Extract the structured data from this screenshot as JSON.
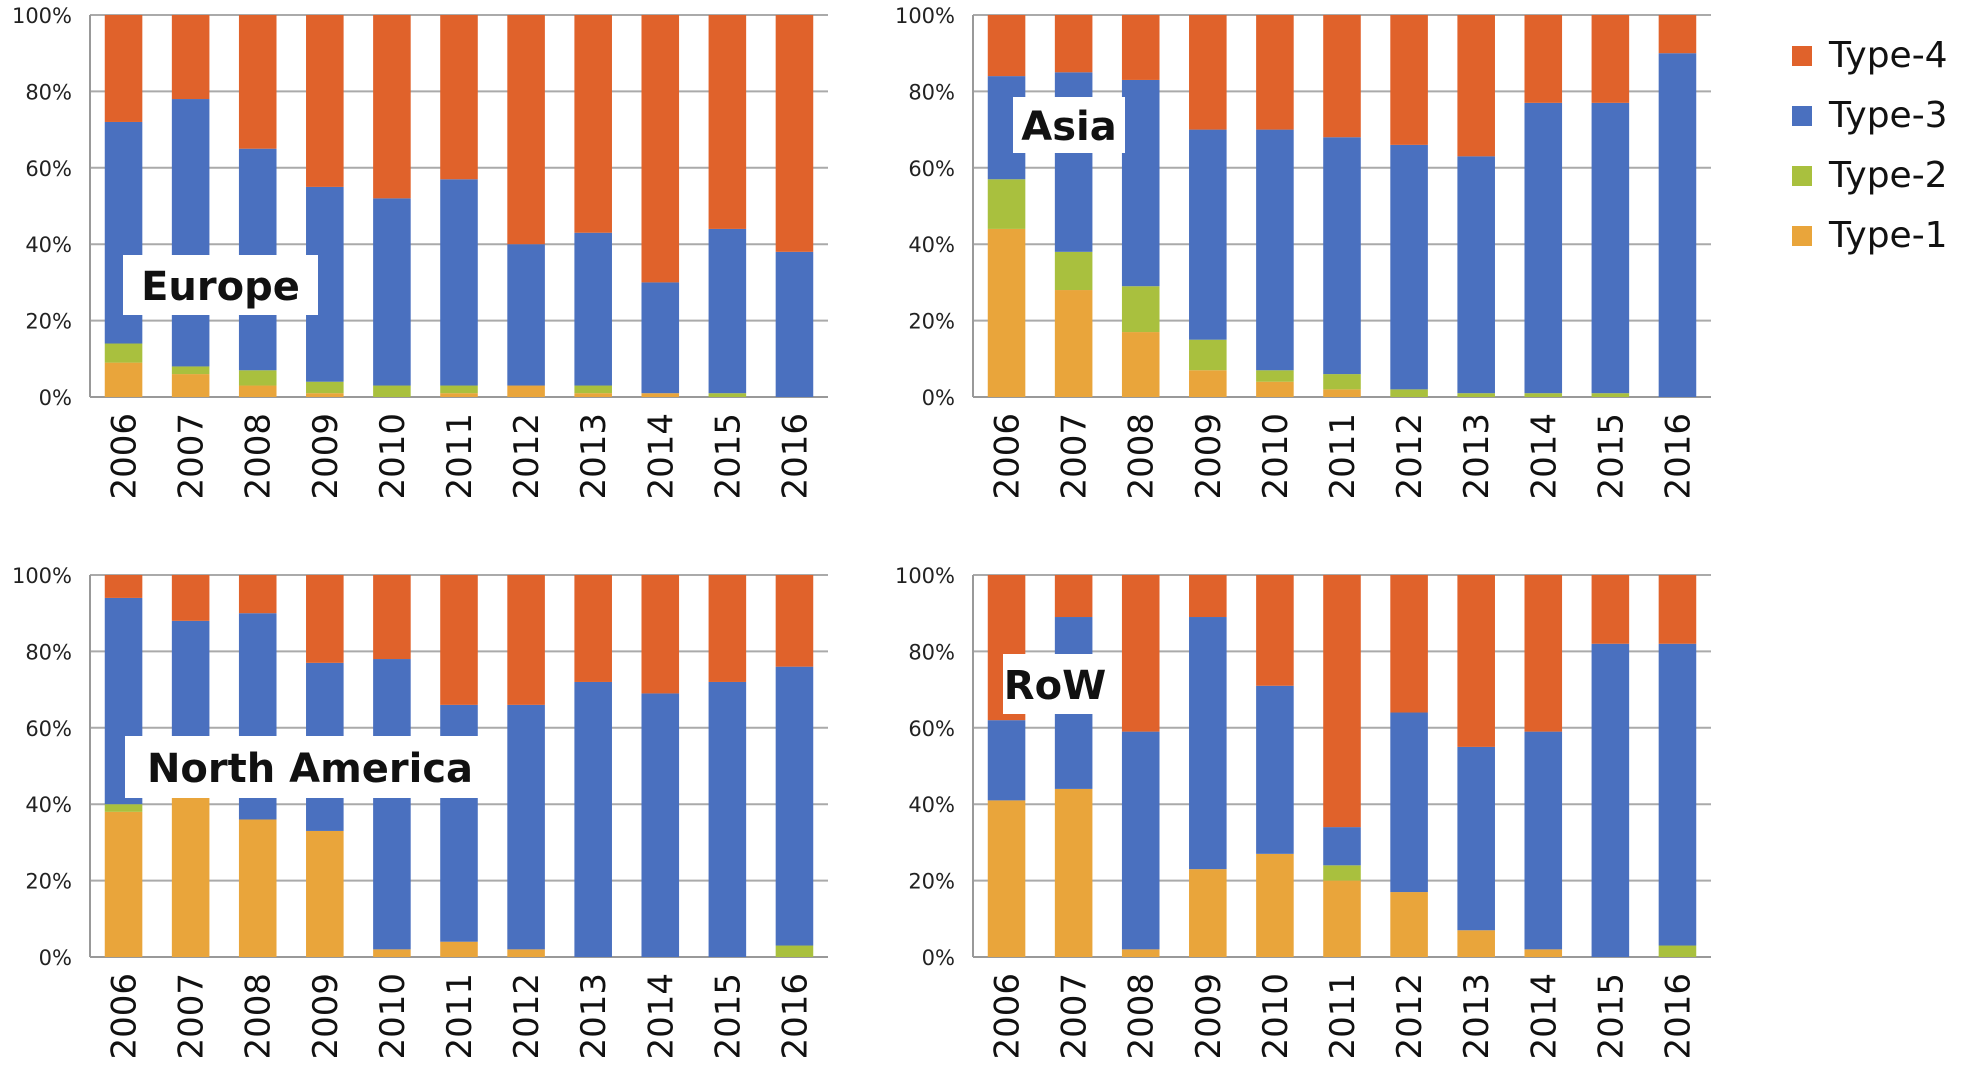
{
  "chart_data": {
    "type": "bar",
    "stacked": true,
    "normalized": true,
    "ylim": [
      0,
      100
    ],
    "y_ticks": [
      "0%",
      "20%",
      "40%",
      "60%",
      "80%",
      "100%"
    ],
    "categories": [
      "2006",
      "2007",
      "2008",
      "2009",
      "2010",
      "2011",
      "2012",
      "2013",
      "2014",
      "2015",
      "2016"
    ],
    "grid": true,
    "legend_position": "top-right",
    "legend": [
      {
        "name": "Type-4",
        "color": "#e0622b"
      },
      {
        "name": "Type-3",
        "color": "#4a70bf"
      },
      {
        "name": "Type-2",
        "color": "#a9c03e"
      },
      {
        "name": "Type-1",
        "color": "#e9a53b"
      }
    ],
    "colors": {
      "Type-1": "#e9a53b",
      "Type-2": "#a9c03e",
      "Type-3": "#4a70bf",
      "Type-4": "#e0622b"
    },
    "panels": [
      {
        "title": "Europe",
        "series": [
          {
            "name": "Type-1",
            "values": [
              9,
              6,
              3,
              1,
              0,
              1,
              3,
              1,
              1,
              0,
              0
            ]
          },
          {
            "name": "Type-2",
            "values": [
              5,
              2,
              4,
              3,
              3,
              2,
              0,
              2,
              0,
              1,
              0
            ]
          },
          {
            "name": "Type-3",
            "values": [
              58,
              70,
              58,
              51,
              49,
              54,
              37,
              40,
              29,
              43,
              38
            ]
          },
          {
            "name": "Type-4",
            "values": [
              28,
              22,
              35,
              45,
              48,
              43,
              60,
              57,
              70,
              56,
              62
            ]
          }
        ]
      },
      {
        "title": "Asia",
        "series": [
          {
            "name": "Type-1",
            "values": [
              44,
              28,
              17,
              7,
              4,
              2,
              0,
              0,
              0,
              0,
              0
            ]
          },
          {
            "name": "Type-2",
            "values": [
              13,
              10,
              12,
              8,
              3,
              4,
              2,
              1,
              1,
              1,
              0
            ]
          },
          {
            "name": "Type-3",
            "values": [
              27,
              47,
              54,
              55,
              63,
              62,
              64,
              62,
              76,
              76,
              90
            ]
          },
          {
            "name": "Type-4",
            "values": [
              16,
              15,
              17,
              30,
              30,
              32,
              34,
              37,
              23,
              23,
              10
            ]
          }
        ]
      },
      {
        "title": "North America",
        "series": [
          {
            "name": "Type-1",
            "values": [
              38,
              42,
              36,
              33,
              2,
              4,
              2,
              0,
              0,
              0,
              0
            ]
          },
          {
            "name": "Type-2",
            "values": [
              2,
              0,
              0,
              0,
              0,
              0,
              0,
              0,
              0,
              0,
              3
            ]
          },
          {
            "name": "Type-3",
            "values": [
              54,
              46,
              54,
              44,
              76,
              62,
              64,
              72,
              69,
              72,
              73
            ]
          },
          {
            "name": "Type-4",
            "values": [
              6,
              12,
              10,
              23,
              22,
              34,
              34,
              28,
              31,
              28,
              24
            ]
          }
        ]
      },
      {
        "title": "RoW",
        "series": [
          {
            "name": "Type-1",
            "values": [
              41,
              44,
              2,
              23,
              27,
              20,
              17,
              7,
              2,
              0,
              0
            ]
          },
          {
            "name": "Type-2",
            "values": [
              0,
              0,
              0,
              0,
              0,
              4,
              0,
              0,
              0,
              0,
              3
            ]
          },
          {
            "name": "Type-3",
            "values": [
              21,
              45,
              57,
              66,
              44,
              10,
              47,
              48,
              57,
              82,
              79
            ]
          },
          {
            "name": "Type-4",
            "values": [
              38,
              11,
              41,
              11,
              29,
              66,
              36,
              45,
              41,
              18,
              18
            ]
          }
        ]
      }
    ]
  }
}
